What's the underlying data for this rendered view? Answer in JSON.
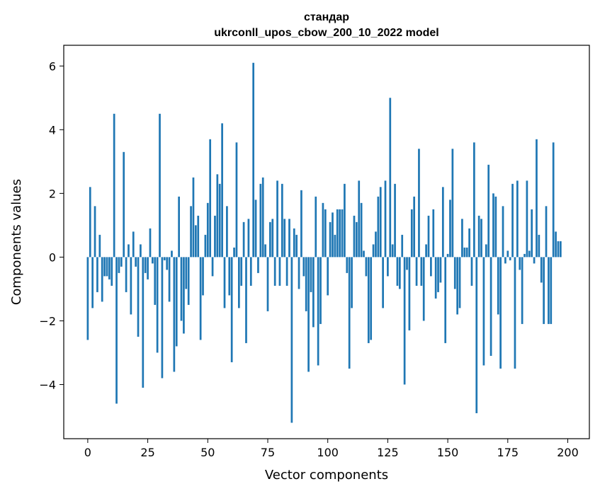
{
  "chart_data": {
    "type": "bar",
    "title_line1": "стандар",
    "title_line2": "ukrconll_upos_cbow_200_10_2022 model",
    "xlabel": "Vector components",
    "ylabel": "Components values",
    "xlim": [
      -10,
      209
    ],
    "ylim": [
      -5.7,
      6.65
    ],
    "x_ticks": [
      0,
      25,
      50,
      75,
      100,
      125,
      150,
      175,
      200
    ],
    "y_ticks": [
      -4,
      -2,
      0,
      2,
      4,
      6
    ],
    "x_tick_labels": [
      "0",
      "25",
      "50",
      "75",
      "100",
      "125",
      "150",
      "175",
      "200"
    ],
    "y_tick_labels": [
      "−4",
      "−2",
      "0",
      "2",
      "4",
      "6"
    ],
    "bar_color": "#1f77b4",
    "grid": false,
    "values": [
      -2.6,
      2.2,
      -1.6,
      1.6,
      -1.1,
      0.7,
      -1.4,
      -0.6,
      -0.6,
      -0.7,
      -0.9,
      4.5,
      -4.6,
      -0.5,
      -0.3,
      3.3,
      -1.1,
      0.4,
      -1.8,
      0.8,
      -0.3,
      -2.5,
      0.4,
      -4.1,
      -0.5,
      -0.7,
      0.9,
      -0.2,
      -1.5,
      -3.0,
      4.5,
      -3.8,
      -0.1,
      -0.4,
      -1.4,
      0.2,
      -3.6,
      -2.8,
      1.9,
      -2.0,
      -2.4,
      -1.0,
      -1.5,
      1.6,
      2.5,
      1.0,
      1.3,
      -2.6,
      -1.2,
      0.7,
      1.7,
      3.7,
      -0.6,
      1.3,
      2.6,
      2.3,
      4.2,
      -1.6,
      1.6,
      -1.2,
      -3.3,
      0.3,
      3.6,
      -1.6,
      -0.9,
      1.1,
      -2.7,
      1.2,
      -0.9,
      6.1,
      1.8,
      -0.5,
      2.3,
      2.5,
      0.4,
      -1.7,
      1.1,
      1.2,
      -0.9,
      2.4,
      -0.9,
      2.3,
      1.2,
      -0.9,
      1.2,
      -5.2,
      0.9,
      0.7,
      -1.0,
      2.1,
      -0.6,
      -1.7,
      -3.6,
      -1.1,
      -2.2,
      1.9,
      -3.4,
      -2.1,
      1.7,
      1.5,
      -1.2,
      1.1,
      1.4,
      0.7,
      1.5,
      1.5,
      1.5,
      2.3,
      -0.5,
      -3.5,
      -1.6,
      1.3,
      1.1,
      2.4,
      1.7,
      0.2,
      -0.6,
      -2.7,
      -2.6,
      0.4,
      0.8,
      1.9,
      2.2,
      -1.6,
      2.4,
      -0.6,
      5.0,
      0.4,
      2.3,
      -0.9,
      -1.0,
      0.7,
      -4.0,
      -0.4,
      -2.3,
      1.5,
      1.9,
      -0.9,
      3.4,
      -0.9,
      -2.0,
      0.4,
      1.3,
      -0.6,
      1.5,
      -1.3,
      -1.1,
      -0.8,
      2.2,
      -2.7,
      0.1,
      1.8,
      3.4,
      -1.0,
      -1.8,
      -1.6,
      1.2,
      0.3,
      0.3,
      0.9,
      -0.9,
      3.6,
      -4.9,
      1.3,
      1.2,
      -3.4,
      0.4,
      2.9,
      -3.1,
      2.0,
      1.9,
      -1.8,
      -3.5,
      1.6,
      -0.2,
      0.2,
      -0.1,
      2.3,
      -3.5,
      2.4,
      -0.4,
      -2.1,
      0.1,
      2.4,
      0.2,
      1.5,
      -0.2,
      3.7,
      0.7,
      -0.8,
      -2.1,
      1.6,
      -2.1,
      -2.1,
      3.6,
      0.8,
      0.5,
      0.5,
      0.0,
      0.0
    ]
  }
}
